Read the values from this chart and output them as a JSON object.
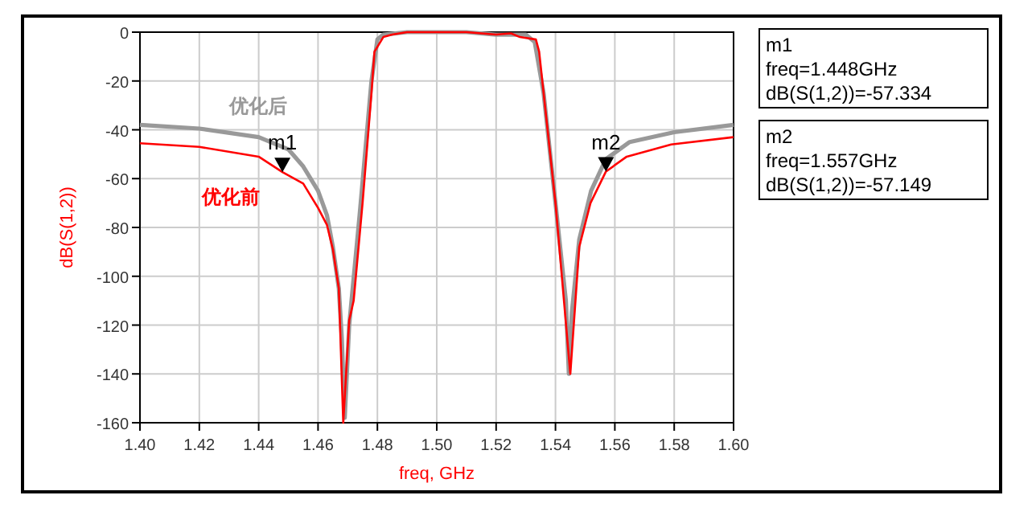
{
  "chart_data": {
    "type": "line",
    "xlabel": "freq, GHz",
    "ylabel": "dB(S(1,2))",
    "xlim": [
      1.4,
      1.6
    ],
    "ylim": [
      -160,
      0
    ],
    "xticks": [
      {
        "value": 1.4,
        "label": "1.40"
      },
      {
        "value": 1.42,
        "label": "1.42"
      },
      {
        "value": 1.44,
        "label": "1.44"
      },
      {
        "value": 1.46,
        "label": "1.46"
      },
      {
        "value": 1.48,
        "label": "1.48"
      },
      {
        "value": 1.5,
        "label": "1.50"
      },
      {
        "value": 1.52,
        "label": "1.52"
      },
      {
        "value": 1.54,
        "label": "1.54"
      },
      {
        "value": 1.56,
        "label": "1.56"
      },
      {
        "value": 1.58,
        "label": "1.58"
      },
      {
        "value": 1.6,
        "label": "1.60"
      }
    ],
    "yticks": [
      0,
      -20,
      -40,
      -60,
      -80,
      -100,
      -120,
      -140,
      -160
    ],
    "grid": true,
    "marker": "none",
    "line_style": "solid",
    "series": [
      {
        "name": "优化后",
        "color": "#999999",
        "x": [
          1.4,
          1.42,
          1.44,
          1.45,
          1.455,
          1.46,
          1.463,
          1.465,
          1.467,
          1.468,
          1.469,
          1.4705,
          1.474,
          1.478,
          1.48,
          1.482,
          1.49,
          1.51,
          1.52,
          1.53,
          1.533,
          1.536,
          1.54,
          1.5435,
          1.5445,
          1.5455,
          1.548,
          1.552,
          1.557,
          1.565,
          1.58,
          1.6
        ],
        "values": [
          -38,
          -39.5,
          -43,
          -48,
          -55,
          -65,
          -75,
          -88,
          -105,
          -125,
          -158,
          -120,
          -75,
          -20,
          -3,
          -1,
          0,
          0,
          -1,
          -1,
          -4,
          -25,
          -70,
          -110,
          -140,
          -115,
          -85,
          -65,
          -52,
          -45,
          -41,
          -38
        ]
      },
      {
        "name": "优化前",
        "color": "#ff0000",
        "x": [
          1.4,
          1.42,
          1.44,
          1.448,
          1.455,
          1.46,
          1.463,
          1.465,
          1.467,
          1.4685,
          1.4705,
          1.472,
          1.475,
          1.478,
          1.479,
          1.482,
          1.485,
          1.49,
          1.5,
          1.51,
          1.52,
          1.525,
          1.528,
          1.5334,
          1.5345,
          1.54,
          1.545,
          1.548,
          1.5518,
          1.557,
          1.564,
          1.579,
          1.6
        ],
        "values": [
          -45.5,
          -47,
          -51,
          -57.3,
          -62,
          -72,
          -79,
          -89,
          -105,
          -160,
          -118,
          -110,
          -70,
          -25,
          -8,
          -2,
          -1,
          0,
          0,
          0,
          -1,
          -0.5,
          -2,
          -3,
          -8,
          -70,
          -140,
          -88,
          -70,
          -57.1,
          -51,
          -46,
          -43
        ]
      }
    ],
    "annotations": [
      {
        "text": "m1",
        "x": 1.448,
        "y": -57.334
      },
      {
        "text": "m2",
        "x": 1.557,
        "y": -57.149
      },
      "m1",
      "freq=1.448GHz",
      "dB(S(1,2))=-57.334",
      "m2",
      "freq=1.557GHz",
      "dB(S(1,2))=-57.149"
    ]
  }
}
